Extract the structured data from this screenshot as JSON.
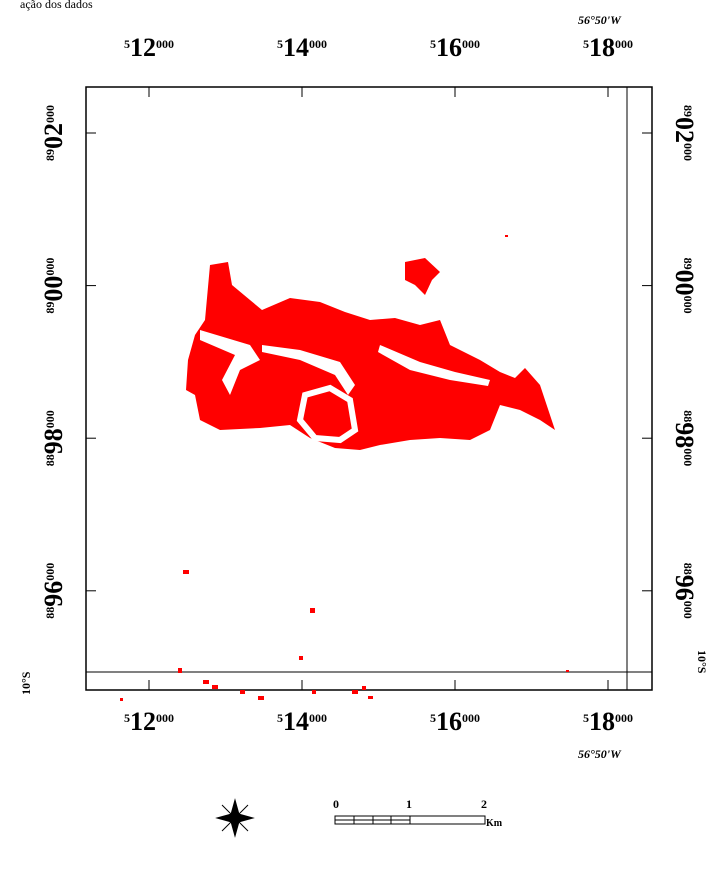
{
  "caption": "ação dos dados",
  "lon_label_top": "56°50'W",
  "lon_label_bottom": "56°50'W",
  "lat_label_left": "10°S",
  "lat_label_right": "10°S",
  "xticks": [
    {
      "value": 512000,
      "prefix": "5",
      "main": "12",
      "suffix": "000"
    },
    {
      "value": 514000,
      "prefix": "5",
      "main": "14",
      "suffix": "000"
    },
    {
      "value": 516000,
      "prefix": "5",
      "main": "16",
      "suffix": "000"
    },
    {
      "value": 518000,
      "prefix": "5",
      "main": "18",
      "suffix": "000"
    }
  ],
  "yticks": [
    {
      "value": 8902000,
      "prefix": "89",
      "main": "02",
      "suffix": "000"
    },
    {
      "value": 8900000,
      "prefix": "89",
      "main": "00",
      "suffix": "000"
    },
    {
      "value": 8898000,
      "prefix": "88",
      "main": "98",
      "suffix": "000"
    },
    {
      "value": 8896000,
      "prefix": "88",
      "main": "96",
      "suffix": "000"
    }
  ],
  "scale": {
    "labels": [
      "0",
      "1",
      "2"
    ],
    "unit": "Km"
  }
}
